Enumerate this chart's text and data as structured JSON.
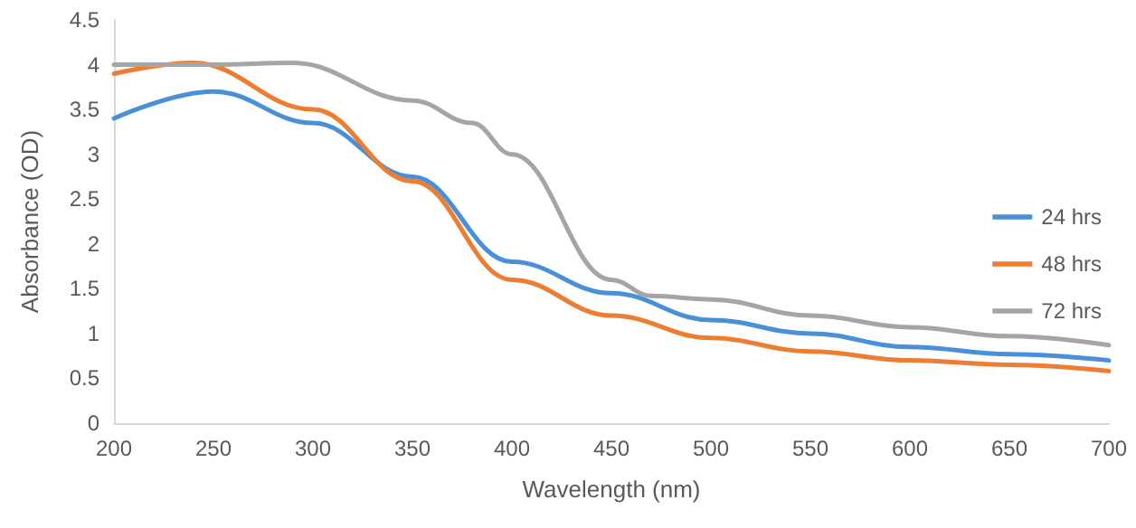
{
  "chart_data": {
    "type": "line",
    "xlabel": "Wavelength (nm)",
    "ylabel": "Absorbance (OD)",
    "xlim": [
      200,
      700
    ],
    "xticks": [
      200,
      250,
      300,
      350,
      400,
      450,
      500,
      550,
      600,
      650,
      700
    ],
    "ylim": [
      0,
      4.5
    ],
    "yticks": [
      0,
      0.5,
      1,
      1.5,
      2,
      2.5,
      3,
      3.5,
      4,
      4.5
    ],
    "grid": false,
    "legend": "right",
    "marker": "none",
    "line_style": "solid",
    "series": [
      {
        "name": "24 hrs",
        "color": "#4a90d9",
        "x": [
          200,
          250,
          300,
          350,
          400,
          450,
          500,
          550,
          600,
          650,
          700
        ],
        "values": [
          3.4,
          3.7,
          3.35,
          2.75,
          1.8,
          1.45,
          1.15,
          1.0,
          0.85,
          0.77,
          0.7
        ]
      },
      {
        "name": "48 hrs",
        "color": "#ed7d31",
        "x": [
          200,
          240,
          300,
          350,
          400,
          450,
          500,
          550,
          600,
          650,
          700
        ],
        "values": [
          3.9,
          4.02,
          3.5,
          2.7,
          1.6,
          1.2,
          0.95,
          0.8,
          0.7,
          0.65,
          0.58
        ]
      },
      {
        "name": "72 hrs",
        "color": "#a5a5a5",
        "x": [
          200,
          250,
          290,
          350,
          380,
          400,
          450,
          470,
          500,
          550,
          600,
          650,
          700
        ],
        "values": [
          4.0,
          4.0,
          4.02,
          3.6,
          3.35,
          3.0,
          1.6,
          1.42,
          1.38,
          1.2,
          1.07,
          0.97,
          0.87
        ]
      }
    ]
  }
}
